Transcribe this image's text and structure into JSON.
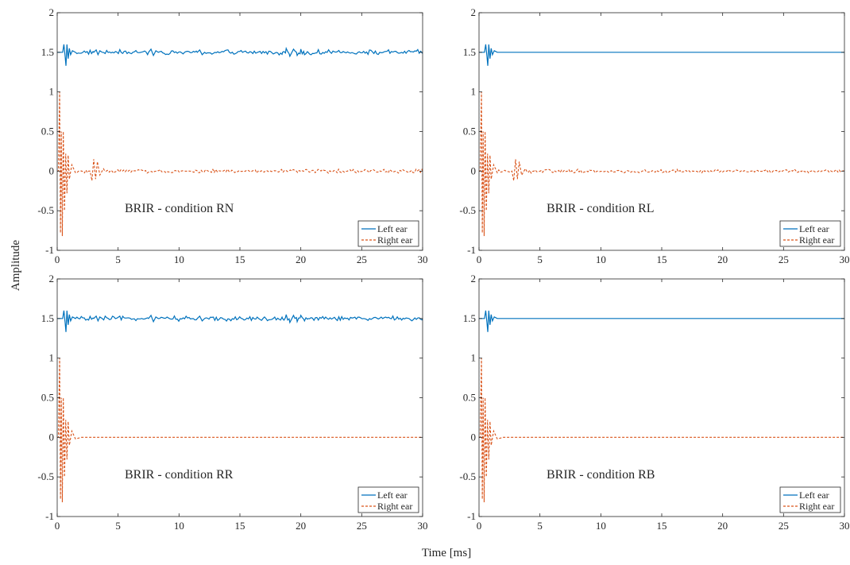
{
  "figure": {
    "xlabel": "Time [ms]",
    "ylabel": "Amplitude"
  },
  "colors": {
    "left_ear": "#0072BD",
    "right_ear": "#D95319",
    "axes": "#262626",
    "background": "#ffffff"
  },
  "chart_data": [
    {
      "type": "line",
      "annotation": "BRIR - condition RN",
      "xlim": [
        0,
        30
      ],
      "ylim": [
        -1,
        2
      ],
      "xticks": [
        "0",
        "5",
        "10",
        "15",
        "20",
        "25",
        "30"
      ],
      "yticks": [
        "-1",
        "-0.5",
        "0",
        "0.5",
        "1",
        "1.5",
        "2"
      ],
      "legend_position": "bottom-right",
      "grid": false,
      "series": [
        {
          "name": "Left ear",
          "style": "solid",
          "offset": 1.5,
          "points": [
            [
              0,
              1.5
            ],
            [
              0.45,
              1.5
            ],
            [
              0.55,
              1.6
            ],
            [
              0.65,
              1.45
            ],
            [
              0.72,
              1.33
            ],
            [
              0.8,
              1.6
            ],
            [
              0.9,
              1.42
            ],
            [
              1.0,
              1.55
            ],
            [
              1.1,
              1.47
            ],
            [
              1.25,
              1.52
            ],
            [
              1.5,
              1.5
            ],
            [
              3.0,
              1.5
            ],
            [
              3.2,
              1.53
            ],
            [
              3.35,
              1.47
            ],
            [
              3.5,
              1.52
            ],
            [
              3.7,
              1.5
            ],
            [
              7.5,
              1.5
            ],
            [
              7.7,
              1.54
            ],
            [
              7.9,
              1.46
            ],
            [
              8.1,
              1.52
            ],
            [
              8.3,
              1.5
            ],
            [
              11.5,
              1.5
            ],
            [
              11.7,
              1.53
            ],
            [
              11.9,
              1.47
            ],
            [
              12.1,
              1.5
            ],
            [
              18.5,
              1.5
            ],
            [
              18.8,
              1.55
            ],
            [
              19.1,
              1.45
            ],
            [
              19.4,
              1.54
            ],
            [
              19.7,
              1.46
            ],
            [
              20.0,
              1.54
            ],
            [
              20.3,
              1.47
            ],
            [
              20.6,
              1.5
            ],
            [
              30,
              1.5
            ]
          ],
          "noise": {
            "from": 1.5,
            "to": 30,
            "amplitude": 0.025
          }
        },
        {
          "name": "Right ear",
          "style": "dashed",
          "offset": 0,
          "points": [
            [
              0,
              0
            ],
            [
              0.1,
              0
            ],
            [
              0.2,
              1.0
            ],
            [
              0.27,
              -0.78
            ],
            [
              0.34,
              0.5
            ],
            [
              0.42,
              -0.82
            ],
            [
              0.5,
              0.5
            ],
            [
              0.6,
              -0.5
            ],
            [
              0.7,
              0.22
            ],
            [
              0.8,
              -0.28
            ],
            [
              0.9,
              0.2
            ],
            [
              1.0,
              -0.1
            ],
            [
              1.2,
              0.08
            ],
            [
              1.5,
              -0.02
            ],
            [
              2.0,
              0
            ],
            [
              2.7,
              0
            ],
            [
              2.85,
              -0.12
            ],
            [
              3.0,
              0.15
            ],
            [
              3.15,
              -0.1
            ],
            [
              3.3,
              0.12
            ],
            [
              3.5,
              -0.05
            ],
            [
              3.8,
              0.03
            ],
            [
              4.5,
              0
            ],
            [
              30,
              0
            ]
          ],
          "noise": {
            "from": 1.5,
            "to": 30,
            "amplitude": 0.02
          }
        }
      ]
    },
    {
      "type": "line",
      "annotation": "BRIR - condition RL",
      "xlim": [
        0,
        30
      ],
      "ylim": [
        -1,
        2
      ],
      "xticks": [
        "0",
        "5",
        "10",
        "15",
        "20",
        "25",
        "30"
      ],
      "yticks": [
        "-1",
        "-0.5",
        "0",
        "0.5",
        "1",
        "1.5",
        "2"
      ],
      "legend_position": "bottom-right",
      "grid": false,
      "series": [
        {
          "name": "Left ear",
          "style": "solid",
          "offset": 1.5,
          "points": [
            [
              0,
              1.5
            ],
            [
              0.45,
              1.5
            ],
            [
              0.55,
              1.6
            ],
            [
              0.65,
              1.45
            ],
            [
              0.72,
              1.33
            ],
            [
              0.8,
              1.6
            ],
            [
              0.9,
              1.42
            ],
            [
              1.0,
              1.55
            ],
            [
              1.1,
              1.47
            ],
            [
              1.25,
              1.52
            ],
            [
              1.5,
              1.5
            ],
            [
              30,
              1.5
            ]
          ],
          "noise": {
            "from": 1.5,
            "to": 30,
            "amplitude": 0.0
          }
        },
        {
          "name": "Right ear",
          "style": "dashed",
          "offset": 0,
          "points": [
            [
              0,
              0
            ],
            [
              0.1,
              0
            ],
            [
              0.2,
              1.0
            ],
            [
              0.27,
              -0.78
            ],
            [
              0.34,
              0.5
            ],
            [
              0.42,
              -0.82
            ],
            [
              0.5,
              0.5
            ],
            [
              0.6,
              -0.5
            ],
            [
              0.7,
              0.22
            ],
            [
              0.8,
              -0.28
            ],
            [
              0.9,
              0.2
            ],
            [
              1.0,
              -0.1
            ],
            [
              1.2,
              0.08
            ],
            [
              1.5,
              -0.02
            ],
            [
              2.0,
              0
            ],
            [
              2.7,
              0
            ],
            [
              2.85,
              -0.12
            ],
            [
              3.0,
              0.15
            ],
            [
              3.15,
              -0.1
            ],
            [
              3.3,
              0.12
            ],
            [
              3.5,
              -0.05
            ],
            [
              3.8,
              0.03
            ],
            [
              4.5,
              0
            ],
            [
              30,
              0
            ]
          ],
          "noise": {
            "from": 1.5,
            "to": 30,
            "amplitude": 0.02
          }
        }
      ]
    },
    {
      "type": "line",
      "annotation": "BRIR - condition RR",
      "xlim": [
        0,
        30
      ],
      "ylim": [
        -1,
        2
      ],
      "xticks": [
        "0",
        "5",
        "10",
        "15",
        "20",
        "25",
        "30"
      ],
      "yticks": [
        "-1",
        "-0.5",
        "0",
        "0.5",
        "1",
        "1.5",
        "2"
      ],
      "legend_position": "bottom-right",
      "grid": false,
      "series": [
        {
          "name": "Left ear",
          "style": "solid",
          "offset": 1.5,
          "points": [
            [
              0,
              1.5
            ],
            [
              0.45,
              1.5
            ],
            [
              0.55,
              1.6
            ],
            [
              0.65,
              1.45
            ],
            [
              0.72,
              1.33
            ],
            [
              0.8,
              1.6
            ],
            [
              0.9,
              1.42
            ],
            [
              1.0,
              1.55
            ],
            [
              1.1,
              1.47
            ],
            [
              1.25,
              1.52
            ],
            [
              1.5,
              1.5
            ],
            [
              3.0,
              1.5
            ],
            [
              3.2,
              1.53
            ],
            [
              3.35,
              1.47
            ],
            [
              3.5,
              1.52
            ],
            [
              3.7,
              1.5
            ],
            [
              7.5,
              1.5
            ],
            [
              7.7,
              1.54
            ],
            [
              7.9,
              1.46
            ],
            [
              8.1,
              1.52
            ],
            [
              8.3,
              1.5
            ],
            [
              11.5,
              1.5
            ],
            [
              11.7,
              1.53
            ],
            [
              11.9,
              1.47
            ],
            [
              12.1,
              1.5
            ],
            [
              18.5,
              1.5
            ],
            [
              18.8,
              1.55
            ],
            [
              19.1,
              1.45
            ],
            [
              19.4,
              1.54
            ],
            [
              19.7,
              1.46
            ],
            [
              20.0,
              1.54
            ],
            [
              20.3,
              1.47
            ],
            [
              20.6,
              1.5
            ],
            [
              30,
              1.5
            ]
          ],
          "noise": {
            "from": 1.5,
            "to": 30,
            "amplitude": 0.025
          }
        },
        {
          "name": "Right ear",
          "style": "dashed",
          "offset": 0,
          "points": [
            [
              0,
              0
            ],
            [
              0.1,
              0
            ],
            [
              0.2,
              1.0
            ],
            [
              0.27,
              -0.78
            ],
            [
              0.34,
              0.5
            ],
            [
              0.42,
              -0.82
            ],
            [
              0.5,
              0.5
            ],
            [
              0.6,
              -0.5
            ],
            [
              0.7,
              0.22
            ],
            [
              0.8,
              -0.28
            ],
            [
              0.9,
              0.2
            ],
            [
              1.0,
              -0.1
            ],
            [
              1.2,
              0.08
            ],
            [
              1.5,
              -0.02
            ],
            [
              2.0,
              0
            ],
            [
              30,
              0
            ]
          ],
          "noise": {
            "from": 1.5,
            "to": 30,
            "amplitude": 0.0
          }
        }
      ]
    },
    {
      "type": "line",
      "annotation": "BRIR - condition RB",
      "xlim": [
        0,
        30
      ],
      "ylim": [
        -1,
        2
      ],
      "xticks": [
        "0",
        "5",
        "10",
        "15",
        "20",
        "25",
        "30"
      ],
      "yticks": [
        "-1",
        "-0.5",
        "0",
        "0.5",
        "1",
        "1.5",
        "2"
      ],
      "legend_position": "bottom-right",
      "grid": false,
      "series": [
        {
          "name": "Left ear",
          "style": "solid",
          "offset": 1.5,
          "points": [
            [
              0,
              1.5
            ],
            [
              0.45,
              1.5
            ],
            [
              0.55,
              1.6
            ],
            [
              0.65,
              1.45
            ],
            [
              0.72,
              1.33
            ],
            [
              0.8,
              1.6
            ],
            [
              0.9,
              1.42
            ],
            [
              1.0,
              1.55
            ],
            [
              1.1,
              1.47
            ],
            [
              1.25,
              1.52
            ],
            [
              1.5,
              1.5
            ],
            [
              30,
              1.5
            ]
          ],
          "noise": {
            "from": 1.5,
            "to": 30,
            "amplitude": 0.0
          }
        },
        {
          "name": "Right ear",
          "style": "dashed",
          "offset": 0,
          "points": [
            [
              0,
              0
            ],
            [
              0.1,
              0
            ],
            [
              0.2,
              1.0
            ],
            [
              0.27,
              -0.78
            ],
            [
              0.34,
              0.5
            ],
            [
              0.42,
              -0.82
            ],
            [
              0.5,
              0.5
            ],
            [
              0.6,
              -0.5
            ],
            [
              0.7,
              0.22
            ],
            [
              0.8,
              -0.28
            ],
            [
              0.9,
              0.2
            ],
            [
              1.0,
              -0.1
            ],
            [
              1.2,
              0.08
            ],
            [
              1.5,
              -0.02
            ],
            [
              2.0,
              0
            ],
            [
              30,
              0
            ]
          ],
          "noise": {
            "from": 1.5,
            "to": 30,
            "amplitude": 0.0
          }
        }
      ]
    }
  ]
}
